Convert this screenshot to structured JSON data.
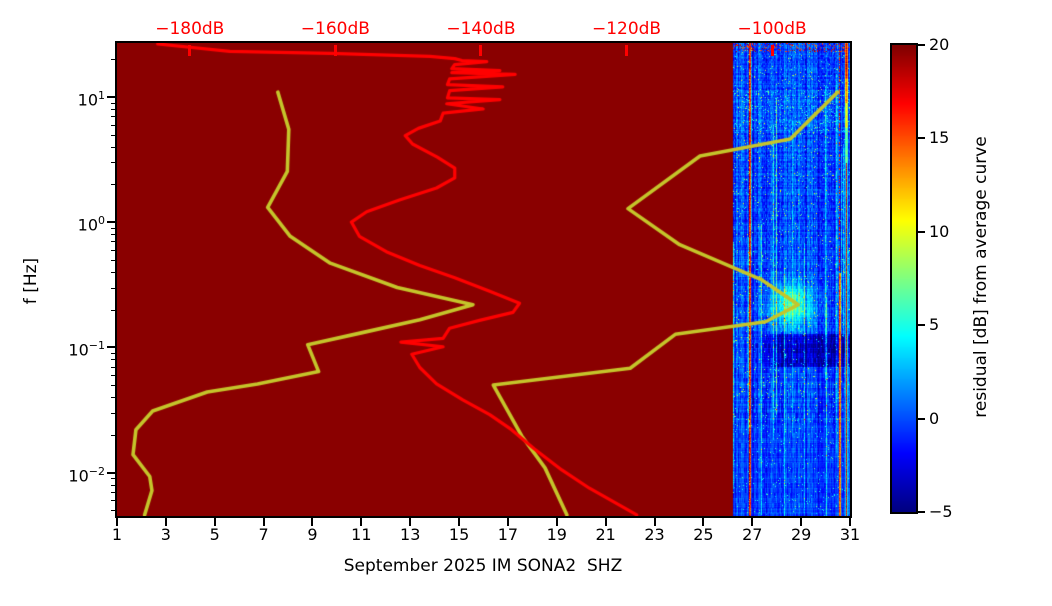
{
  "figure": {
    "background": "#ffffff"
  },
  "plot": {
    "xlabel": "September 2025 IM SONA2  SHZ",
    "ylabel": "f [Hz]",
    "x_axis": {
      "unit": "day of month",
      "range": [
        1,
        31
      ],
      "ticks": [
        1,
        3,
        5,
        7,
        9,
        11,
        13,
        15,
        17,
        19,
        21,
        23,
        25,
        27,
        29,
        31
      ]
    },
    "y_axis": {
      "scale": "log",
      "range_hz": [
        0.0045,
        26.9
      ],
      "major_ticks_hz": [
        10,
        1,
        0.1,
        0.01
      ]
    },
    "top_axis": {
      "unit": "dB",
      "color": "#ff0000",
      "range_db": [
        -190,
        -89.3
      ],
      "ticks_db": [
        -180,
        -160,
        -140,
        -120,
        -100
      ],
      "label_suffix": "dB"
    }
  },
  "colorbar": {
    "label": "residual [dB] from average curve",
    "min": -5,
    "max": 20,
    "ticks": [
      20,
      15,
      10,
      5,
      0,
      -5
    ],
    "colormap": "jet"
  },
  "colors": {
    "saturated_background": "#8a0000",
    "psd_curve": "#ff0000",
    "noise_model_curves": "#c5c52b",
    "axis_text": "#000000",
    "top_axis_text": "#ff0000"
  },
  "chart_data": {
    "type": "heatmap",
    "title": "",
    "xlabel": "September 2025 IM SONA2  SHZ",
    "ylabel": "f [Hz]",
    "x": {
      "unit": "day",
      "range": [
        1,
        31
      ]
    },
    "y": {
      "unit": "Hz",
      "scale": "log",
      "range": [
        0.0045,
        26.9
      ]
    },
    "z": {
      "label": "residual [dB] from average curve",
      "range": [
        -5,
        20
      ],
      "colormap": "jet"
    },
    "saturated_region": {
      "day_range": [
        1,
        26.2
      ],
      "value": 20,
      "note": "solid dark red — residual clipped at +20 dB (no data window)"
    },
    "data_window": {
      "day_start": 26.2,
      "day_end": 31,
      "typical_residual_db_range": [
        -3,
        4
      ],
      "texture": "vertical cyan streaks over blue background",
      "features": {
        "vertical_hot_lines": [
          {
            "day": 26.85,
            "residual_db": 17
          },
          {
            "day": 30.55,
            "residual_db": 14
          },
          {
            "day": 30.85,
            "residual_db": 16
          }
        ],
        "hot_patch_top_right": {
          "day_range": [
            30.75,
            31
          ],
          "freq_range_hz": [
            8,
            27
          ],
          "residual_db": 15
        },
        "bright_blob": {
          "day": 28.6,
          "freq_hz": 0.22,
          "residual_db": 5
        },
        "dark_band": {
          "day_range": [
            27,
            31
          ],
          "freq_range_hz": [
            0.07,
            0.13
          ],
          "residual_db": -4
        },
        "top_edge_speckles": {
          "freq_hz": 25,
          "residual_db": 18
        }
      }
    },
    "db_reference_axis": {
      "range_db": [
        -190,
        -89.3
      ],
      "ticks_db": [
        -180,
        -160,
        -140,
        -120,
        -100
      ]
    },
    "psd_curve_db_vs_hz": [
      [
        -184.4,
        26.4
      ],
      [
        -174.5,
        23.1
      ],
      [
        -160.7,
        22.2
      ],
      [
        -147.0,
        21.0
      ],
      [
        -143.6,
        20.2
      ],
      [
        -142.6,
        19.5
      ],
      [
        -139.2,
        19.1
      ],
      [
        -143.6,
        18.1
      ],
      [
        -144.0,
        16.8
      ],
      [
        -137.4,
        16.2
      ],
      [
        -144.0,
        15.6
      ],
      [
        -135.3,
        15.1
      ],
      [
        -144.3,
        13.9
      ],
      [
        -144.6,
        12.5
      ],
      [
        -137.0,
        12.0
      ],
      [
        -144.3,
        11.2
      ],
      [
        -144.6,
        9.8
      ],
      [
        -137.4,
        9.5
      ],
      [
        -144.7,
        8.8
      ],
      [
        -139.7,
        8.0
      ],
      [
        -145.2,
        7.4
      ],
      [
        -145.6,
        6.4
      ],
      [
        -148.6,
        5.6
      ],
      [
        -150.4,
        4.9
      ],
      [
        -149.4,
        4.2
      ],
      [
        -146.0,
        3.3
      ],
      [
        -143.6,
        2.7
      ],
      [
        -143.6,
        2.25
      ],
      [
        -146.1,
        1.87
      ],
      [
        -151.2,
        1.5
      ],
      [
        -155.7,
        1.21
      ],
      [
        -157.8,
        1.0
      ],
      [
        -156.7,
        0.77
      ],
      [
        -153.0,
        0.58
      ],
      [
        -148.4,
        0.45
      ],
      [
        -143.6,
        0.36
      ],
      [
        -138.8,
        0.28
      ],
      [
        -134.7,
        0.225
      ],
      [
        -135.6,
        0.19
      ],
      [
        -140.2,
        0.164
      ],
      [
        -144.3,
        0.142
      ],
      [
        -145.2,
        0.118
      ],
      [
        -151.0,
        0.11
      ],
      [
        -145.2,
        0.101
      ],
      [
        -149.5,
        0.088
      ],
      [
        -148.4,
        0.069
      ],
      [
        -146.1,
        0.051
      ],
      [
        -142.5,
        0.038
      ],
      [
        -138.8,
        0.029
      ],
      [
        -135.8,
        0.022
      ],
      [
        -132.7,
        0.0155
      ],
      [
        -128.9,
        0.0105
      ],
      [
        -125.1,
        0.0075
      ],
      [
        -118.6,
        0.0046
      ]
    ],
    "noise_models_db_vs_hz": {
      "low": [
        [
          -167.9,
          10.9
        ],
        [
          -166.4,
          5.5
        ],
        [
          -166.6,
          2.54
        ],
        [
          -169.3,
          1.31
        ],
        [
          -166.2,
          0.77
        ],
        [
          -160.7,
          0.47
        ],
        [
          -151.5,
          0.3
        ],
        [
          -141.1,
          0.219
        ],
        [
          -148.4,
          0.166
        ],
        [
          -156.3,
          0.131
        ],
        [
          -163.8,
          0.105
        ],
        [
          -162.3,
          0.064
        ],
        [
          -170.7,
          0.051
        ],
        [
          -177.6,
          0.044
        ],
        [
          -185.1,
          0.031
        ],
        [
          -187.4,
          0.022
        ],
        [
          -187.8,
          0.0139
        ],
        [
          -185.5,
          0.0093
        ],
        [
          -185.2,
          0.0072
        ],
        [
          -186.2,
          0.0046
        ]
      ],
      "high": [
        [
          -91.0,
          10.9
        ],
        [
          -97.5,
          4.6
        ],
        [
          -109.9,
          3.37
        ],
        [
          -119.8,
          1.28
        ],
        [
          -112.7,
          0.66
        ],
        [
          -101.4,
          0.345
        ],
        [
          -96.4,
          0.219
        ],
        [
          -100.9,
          0.16
        ],
        [
          -113.3,
          0.127
        ],
        [
          -119.5,
          0.068
        ],
        [
          -138.3,
          0.05
        ],
        [
          -134.4,
          0.0196
        ],
        [
          -131.2,
          0.0109
        ],
        [
          -128.2,
          0.0046
        ]
      ]
    }
  }
}
